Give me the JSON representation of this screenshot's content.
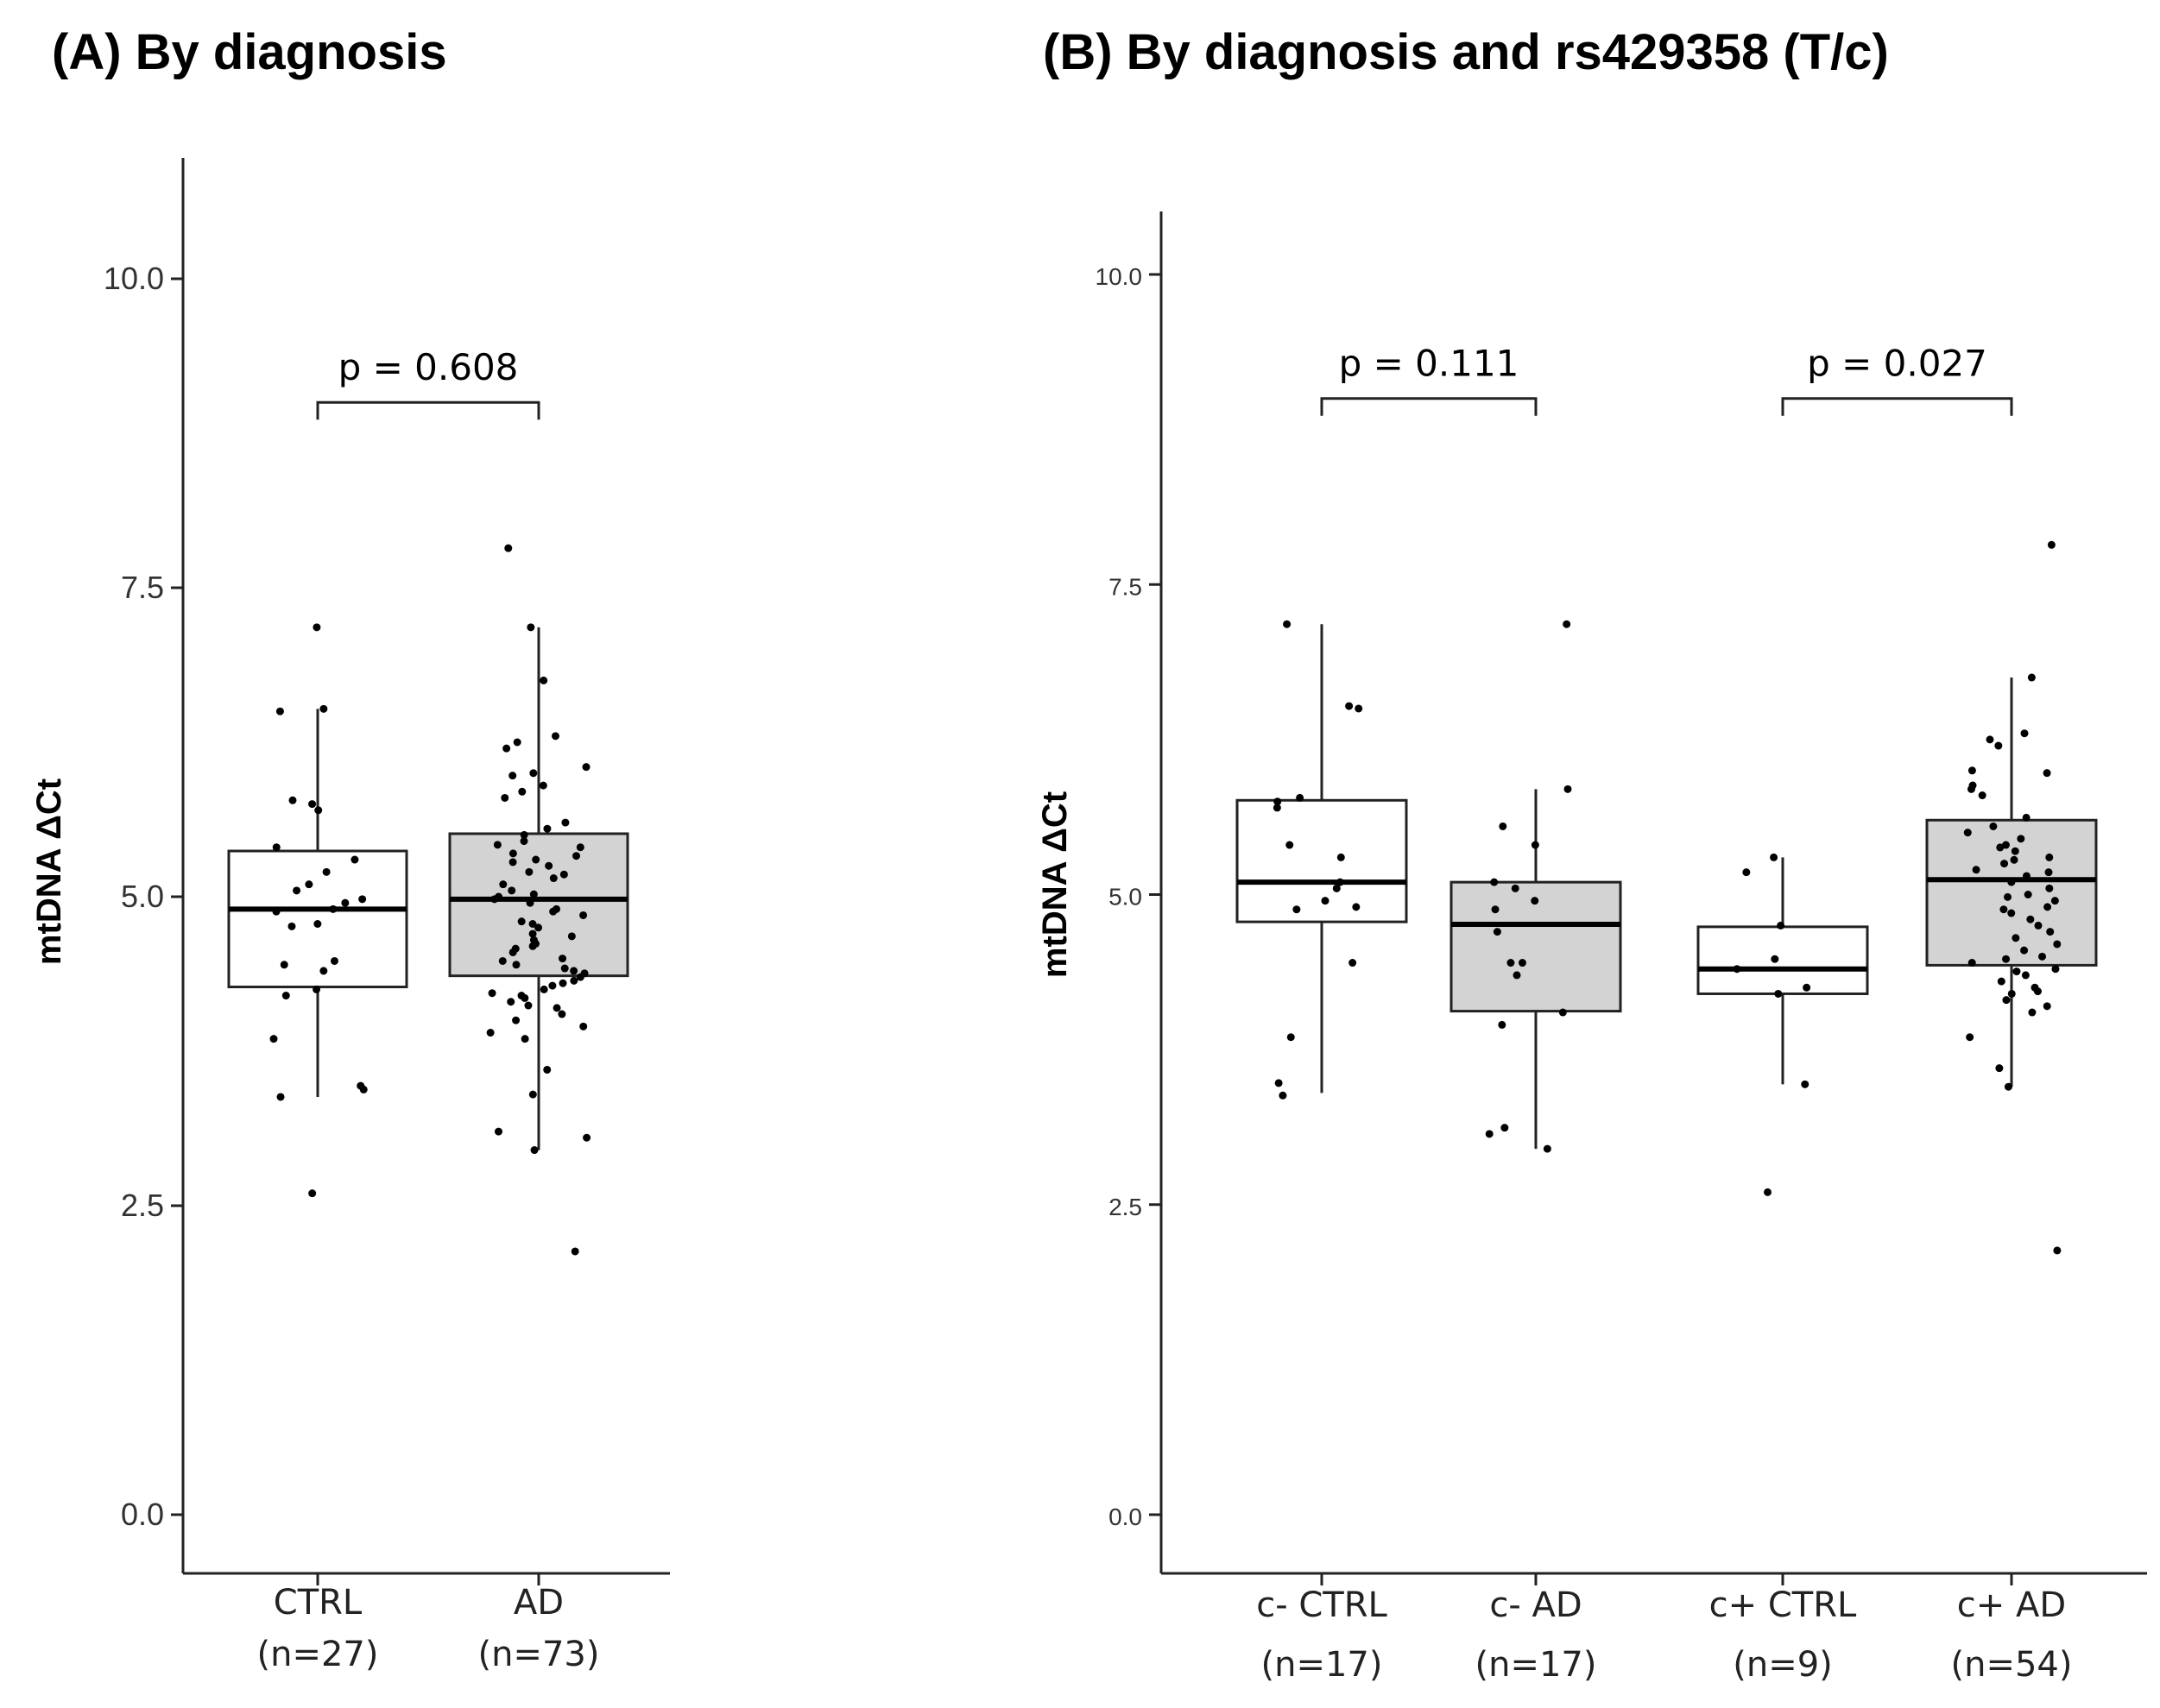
{
  "panels": {
    "a": {
      "title": "(A) By diagnosis"
    },
    "b": {
      "title": "(B) By diagnosis and rs429358 (T/c)"
    }
  },
  "colors": {
    "control_fill": "#ffffff",
    "ad_fill": "#d3d3d3",
    "point": "#000000",
    "axis": "#222222"
  },
  "chart_data": [
    {
      "type": "boxplot",
      "title": "(A) By diagnosis",
      "ylabel": "mtDNA ΔCt",
      "xlabel": "",
      "ylim": [
        -0.5,
        11.0
      ],
      "yticks": [
        0.0,
        2.5,
        5.0,
        7.5,
        10.0
      ],
      "ytick_labels": [
        "0.0",
        "2.5",
        "5.0",
        "7.5",
        "10.0"
      ],
      "groups": [
        {
          "name": "CTRL",
          "n_label": "(n=27)",
          "fill": "#ffffff",
          "q1": 4.27,
          "median": 4.9,
          "q3": 5.37,
          "whisker_low": 3.38,
          "whisker_high": 6.52,
          "points": [
            7.18,
            6.52,
            6.5,
            5.78,
            5.75,
            5.7,
            5.4,
            5.3,
            5.2,
            5.1,
            5.05,
            4.95,
            4.9,
            4.88,
            4.78,
            4.76,
            4.48,
            4.45,
            4.4,
            4.25,
            4.2,
            3.85,
            3.47,
            3.44,
            3.38,
            2.6,
            4.98
          ]
        },
        {
          "name": "AD",
          "n_label": "(n=73)",
          "fill": "#d3d3d3",
          "q1": 4.36,
          "median": 4.98,
          "q3": 5.51,
          "whisker_low": 2.95,
          "whisker_high": 7.18,
          "points": [
            7.82,
            7.18,
            6.75,
            6.3,
            6.25,
            6.2,
            6.05,
            6.0,
            5.98,
            5.9,
            5.85,
            5.8,
            5.6,
            5.5,
            5.45,
            5.42,
            5.4,
            5.35,
            5.33,
            5.3,
            5.28,
            5.25,
            5.2,
            5.18,
            5.15,
            5.1,
            5.05,
            5.02,
            5.0,
            4.98,
            4.95,
            4.9,
            4.88,
            4.85,
            4.8,
            4.78,
            4.75,
            4.7,
            4.68,
            4.65,
            4.6,
            4.58,
            4.55,
            4.5,
            4.48,
            4.45,
            4.42,
            4.4,
            4.38,
            4.35,
            4.32,
            4.3,
            4.28,
            4.25,
            4.22,
            4.2,
            4.18,
            4.15,
            4.12,
            4.1,
            4.05,
            4.0,
            3.95,
            3.9,
            3.85,
            3.6,
            3.4,
            3.1,
            3.05,
            2.95,
            2.13,
            5.55,
            4.62
          ]
        }
      ],
      "comparisons": [
        {
          "between": [
            "CTRL",
            "AD"
          ],
          "label": "p = 0.608",
          "y": 9.0
        }
      ]
    },
    {
      "type": "boxplot",
      "title": "(B) By diagnosis and rs429358 (T/c)",
      "ylabel": "mtDNA ΔCt",
      "xlabel": "",
      "ylim": [
        -0.5,
        10.5
      ],
      "yticks": [
        0.0,
        2.5,
        5.0,
        7.5,
        10.0
      ],
      "ytick_labels": [
        "0.0",
        "2.5",
        "5.0",
        "7.5",
        "10.0"
      ],
      "groups": [
        {
          "name": "c- CTRL",
          "n_label": "(n=17)",
          "fill": "#ffffff",
          "q1": 4.78,
          "median": 5.1,
          "q3": 5.76,
          "whisker_low": 3.4,
          "whisker_high": 7.18,
          "points": [
            7.18,
            6.52,
            6.5,
            5.78,
            5.75,
            5.4,
            5.3,
            5.1,
            5.05,
            4.9,
            4.88,
            4.45,
            3.85,
            3.48,
            3.38,
            5.7,
            4.95
          ]
        },
        {
          "name": "c- AD",
          "n_label": "(n=17)",
          "fill": "#d3d3d3",
          "q1": 4.06,
          "median": 4.76,
          "q3": 5.1,
          "whisker_low": 2.95,
          "whisker_high": 5.85,
          "points": [
            7.18,
            5.85,
            5.55,
            5.4,
            5.1,
            5.05,
            4.95,
            4.88,
            4.45,
            4.45,
            4.35,
            4.05,
            3.95,
            3.12,
            3.07,
            2.95,
            4.7
          ]
        },
        {
          "name": "c+ CTRL",
          "n_label": "(n=9)",
          "fill": "#ffffff",
          "q1": 4.2,
          "median": 4.4,
          "q3": 4.74,
          "whisker_low": 3.47,
          "whisker_high": 5.3,
          "points": [
            5.3,
            5.18,
            4.75,
            4.48,
            4.4,
            4.25,
            4.2,
            3.47,
            2.6
          ]
        },
        {
          "name": "c+ AD",
          "n_label": "(n=54)",
          "fill": "#d3d3d3",
          "q1": 4.43,
          "median": 5.12,
          "q3": 5.6,
          "whisker_low": 3.45,
          "whisker_high": 6.75,
          "points": [
            7.82,
            6.75,
            6.3,
            6.25,
            6.2,
            6.0,
            5.98,
            5.88,
            5.85,
            5.8,
            5.55,
            5.5,
            5.45,
            5.4,
            5.38,
            5.35,
            5.3,
            5.28,
            5.25,
            5.2,
            5.18,
            5.15,
            5.1,
            5.05,
            5.0,
            4.98,
            4.95,
            4.9,
            4.88,
            4.85,
            4.8,
            4.75,
            4.7,
            4.65,
            4.6,
            4.55,
            4.5,
            4.48,
            4.45,
            4.4,
            4.38,
            4.35,
            4.3,
            4.25,
            4.22,
            4.2,
            4.15,
            4.1,
            4.05,
            3.85,
            3.6,
            3.45,
            2.13,
            5.62
          ]
        }
      ],
      "comparisons": [
        {
          "between": [
            "c- CTRL",
            "c- AD"
          ],
          "label": "p = 0.111",
          "y": 9.0
        },
        {
          "between": [
            "c+ CTRL",
            "c+ AD"
          ],
          "label": "p = 0.027",
          "y": 9.0
        }
      ]
    }
  ]
}
